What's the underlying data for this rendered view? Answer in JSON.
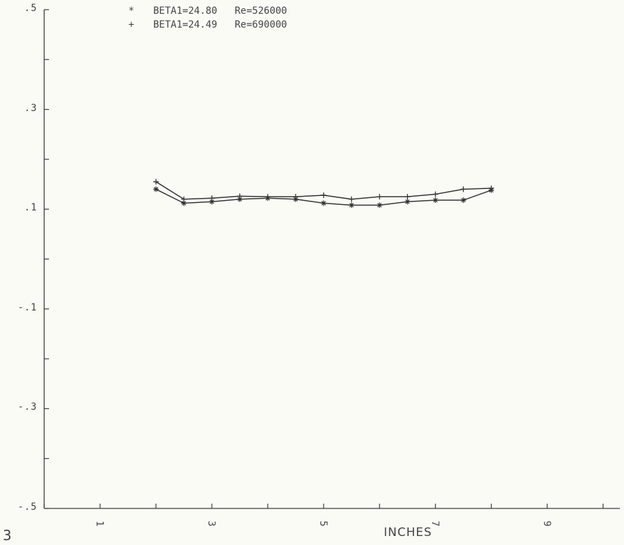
{
  "page_number": "3",
  "chart_data": {
    "type": "line",
    "title": "",
    "xlabel": "INCHES",
    "ylabel": "",
    "xlim": [
      0,
      10.3
    ],
    "ylim": [
      -0.5,
      0.5
    ],
    "grid": false,
    "legend_position": "top-left",
    "y_tick_values": [
      0.5,
      0.4,
      0.3,
      0.2,
      0.1,
      0.0,
      -0.1,
      -0.2,
      -0.3,
      -0.4,
      -0.5
    ],
    "y_tick_labels": {
      "0.5": ".5",
      "0.3": ".3",
      "0.1": ".1",
      "-0.1": "-.1",
      "-0.3": "-.3",
      "-0.5": "-.5"
    },
    "x_tick_values": [
      0,
      1,
      2,
      3,
      4,
      5,
      6,
      7,
      8,
      9,
      10
    ],
    "x_tick_labels": {
      "1": "1",
      "3": "3",
      "5": "5",
      "7": "7",
      "9": "9"
    },
    "series": [
      {
        "name": "BETA1=24.80   Re=526000",
        "marker": "*",
        "color": "#333333",
        "x": [
          2.0,
          2.5,
          3.0,
          3.5,
          4.0,
          4.5,
          5.0,
          5.5,
          6.0,
          6.5,
          7.0,
          7.5,
          8.0
        ],
        "y": [
          0.14,
          0.112,
          0.115,
          0.12,
          0.122,
          0.12,
          0.112,
          0.108,
          0.108,
          0.115,
          0.118,
          0.118,
          0.138
        ]
      },
      {
        "name": "BETA1=24.49   Re=690000",
        "marker": "+",
        "color": "#333333",
        "x": [
          2.0,
          2.5,
          3.0,
          3.5,
          4.0,
          4.5,
          5.0,
          5.5,
          6.0,
          6.5,
          7.0,
          7.5,
          8.0
        ],
        "y": [
          0.155,
          0.12,
          0.122,
          0.126,
          0.125,
          0.125,
          0.128,
          0.12,
          0.125,
          0.125,
          0.13,
          0.14,
          0.142
        ]
      }
    ]
  }
}
